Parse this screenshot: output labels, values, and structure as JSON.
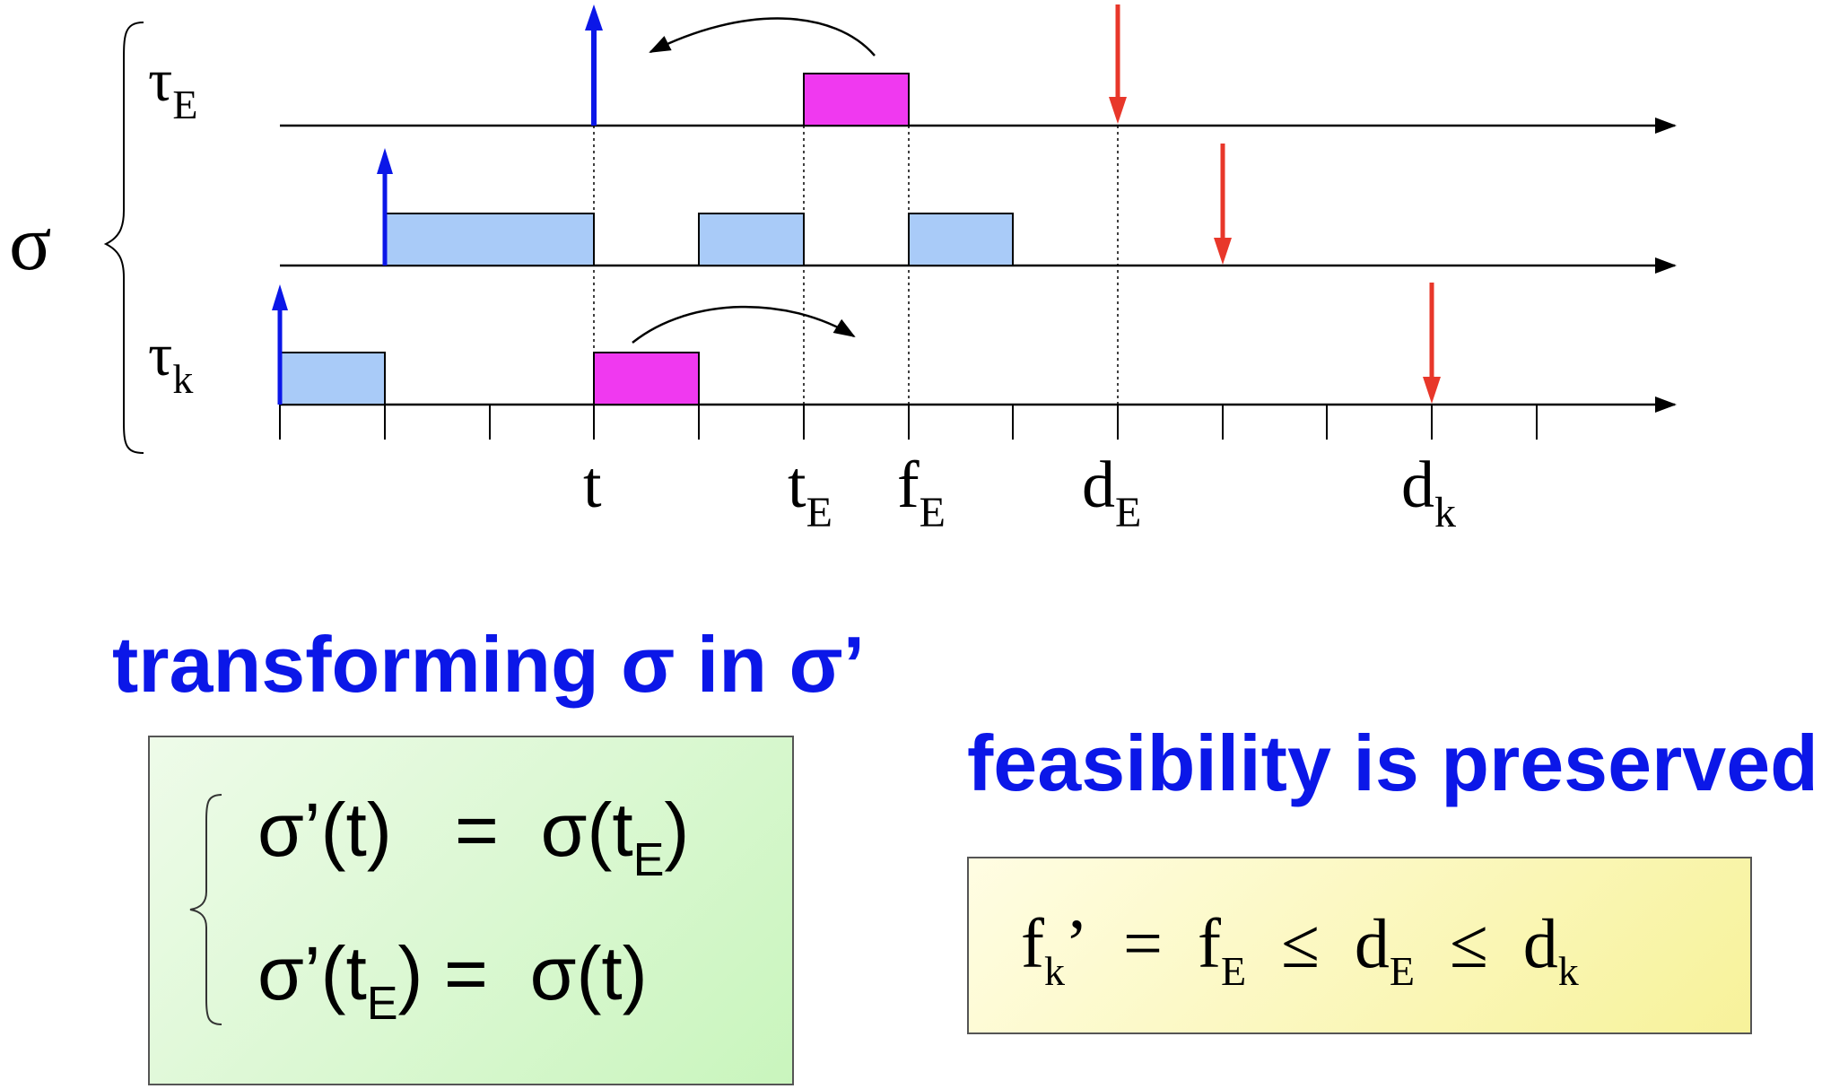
{
  "diagram": {
    "sigma_label": "σ",
    "tau_E_label": {
      "base": "τ",
      "sub": "E"
    },
    "tau_k_label": {
      "base": "τ",
      "sub": "k"
    },
    "axis_labels": {
      "t": "t",
      "tE": {
        "base": "t",
        "sub": "E"
      },
      "fE": {
        "base": "f",
        "sub": "E"
      },
      "dE": {
        "base": "d",
        "sub": "E"
      },
      "dk": {
        "base": "d",
        "sub": "k"
      }
    },
    "colors": {
      "arrival_arrow": "#0b17e8",
      "deadline_arrow": "#e8372a",
      "swapped_block": "#f039f0",
      "normal_block": "#a9cbf8",
      "axis": "#000000"
    }
  },
  "heading1": "transforming σ in σ’",
  "heading2": "feasibility is preserved",
  "swap_rules": {
    "line1": {
      "left": "σ’(t)",
      "eq": "=",
      "right_base": "σ(t",
      "right_sub": "E",
      "right_close": ")"
    },
    "line2": {
      "left_base": "σ’(t",
      "left_sub": "E",
      "left_close": ")",
      "eq": "=",
      "right": "σ(t)"
    }
  },
  "inequality": {
    "fk_base": "f",
    "fk_sub": "k",
    "fk_prime": "’",
    "eq": "=",
    "fE_base": "f",
    "fE_sub": "E",
    "le1": "≤",
    "dE_base": "d",
    "dE_sub": "E",
    "le2": "≤",
    "dk_base": "d",
    "dk_sub": "k"
  }
}
